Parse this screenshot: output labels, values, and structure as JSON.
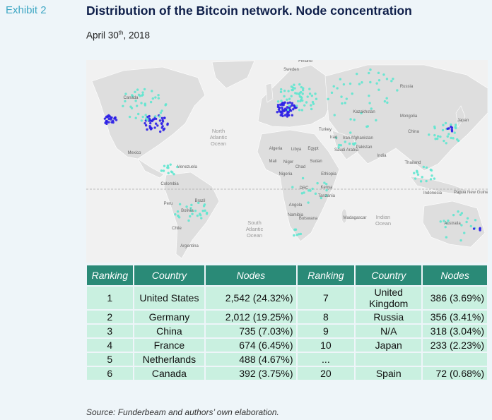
{
  "header": {
    "exhibit": "Exhibit 2",
    "title": "Distribution of the Bitcoin network. Node concentration",
    "date": {
      "main": "April 30",
      "sup": "th",
      "rest": ", 2018"
    }
  },
  "map": {
    "labels": [
      "Finland",
      "Sweden",
      "Canada",
      "Russia",
      "Kazakhstan",
      "Mongolia",
      "China",
      "Japan",
      "Turkey",
      "Iraq",
      "Iran",
      "Afghanistan",
      "Pakistan",
      "Saudi Arabia",
      "India",
      "Thailand",
      "Algeria",
      "Libya",
      "Egypt",
      "Mali",
      "Niger",
      "Chad",
      "Sudan",
      "Nigeria",
      "Ethiopia",
      "DRC",
      "Kenya",
      "Tanzania",
      "Angola",
      "Namibia",
      "Botswana",
      "Madagascar",
      "Indonesia",
      "Papua New Guinea",
      "Australia",
      "Mexico",
      "Venezuela",
      "Colombia",
      "Peru",
      "Brazil",
      "Bolivia",
      "Chile",
      "Argentina"
    ],
    "oceans": [
      [
        "North",
        "Atlantic",
        "Ocean"
      ],
      [
        "South",
        "Atlantic",
        "Ocean"
      ],
      [
        "Indian",
        "Ocean"
      ]
    ]
  },
  "table": {
    "columns": [
      "Ranking",
      "Country",
      "Nodes",
      "Ranking",
      "Country",
      "Nodes"
    ],
    "rows": [
      [
        "1",
        "United States",
        "2,542 (24.32%)",
        "7",
        "United Kingdom",
        "386 (3.69%)"
      ],
      [
        "2",
        "Germany",
        "2,012 (19.25%)",
        "8",
        "Russia",
        "356 (3.41%)"
      ],
      [
        "3",
        "China",
        "735 (7.03%)",
        "9",
        "N/A",
        "318 (3.04%)"
      ],
      [
        "4",
        "France",
        "674 (6.45%)",
        "10",
        "Japan",
        "233 (2.23%)"
      ],
      [
        "5",
        "Netherlands",
        "488 (4.67%)",
        "...",
        null,
        null
      ],
      [
        "6",
        "Canada",
        "392 (3.75%)",
        "20",
        "Spain",
        "72 (0.68%)"
      ]
    ]
  },
  "source": "Source: Funderbeam and authors’ own elaboration."
}
